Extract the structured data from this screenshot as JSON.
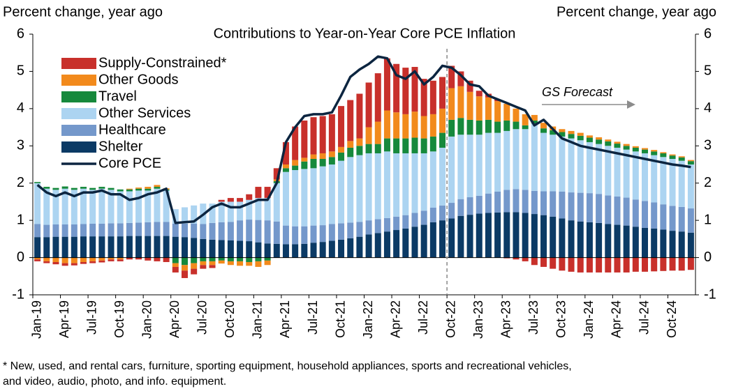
{
  "chart_data": {
    "type": "stacked-bar",
    "title": "Contributions to Year-on-Year Core PCE Inflation",
    "ylabel": "Percent change, year ago",
    "y2label": "Percent change, year ago",
    "annotation": "GS Forecast",
    "footnote": [
      "* New, used, and rental cars, furniture, sporting equipment, household appliances, sports and recreational vehicles,",
      "and video, audio, photo, and info. equipment."
    ],
    "categories": [
      "Jan-19",
      null,
      null,
      "Apr-19",
      null,
      null,
      "Jul-19",
      null,
      null,
      "Oct-19",
      null,
      null,
      "Jan-20",
      null,
      null,
      "Apr-20",
      null,
      null,
      "Jul-20",
      null,
      null,
      "Oct-20",
      null,
      null,
      "Jan-21",
      null,
      null,
      "Apr-21",
      null,
      null,
      "Jul-21",
      null,
      null,
      "Oct-21",
      null,
      null,
      "Jan-22",
      null,
      null,
      "Apr-22",
      null,
      null,
      "Jul-22",
      null,
      null,
      "Oct-22",
      null,
      null,
      "Jan-23",
      null,
      null,
      "Apr-23",
      null,
      null,
      "Jul-23",
      null,
      null,
      "Oct-23",
      null,
      null,
      "Jan-24",
      null,
      null,
      "Apr-24",
      null,
      null,
      "Jul-24",
      null,
      null,
      "Oct-24",
      null,
      null
    ],
    "series": [
      {
        "name": "Shelter",
        "color": "#0b3a65",
        "values": [
          0.55,
          0.55,
          0.56,
          0.56,
          0.56,
          0.57,
          0.57,
          0.57,
          0.57,
          0.57,
          0.58,
          0.58,
          0.58,
          0.58,
          0.58,
          0.56,
          0.55,
          0.53,
          0.5,
          0.48,
          0.47,
          0.46,
          0.45,
          0.44,
          0.41,
          0.38,
          0.37,
          0.36,
          0.36,
          0.37,
          0.4,
          0.42,
          0.45,
          0.48,
          0.52,
          0.56,
          0.62,
          0.66,
          0.7,
          0.74,
          0.78,
          0.83,
          0.88,
          0.95,
          1.0,
          1.05,
          1.12,
          1.15,
          1.18,
          1.2,
          1.21,
          1.22,
          1.22,
          1.2,
          1.17,
          1.14,
          1.1,
          1.05,
          1.0,
          0.97,
          0.95,
          0.93,
          0.9,
          0.88,
          0.86,
          0.83,
          0.8,
          0.78,
          0.75,
          0.72,
          0.7,
          0.67
        ]
      },
      {
        "name": "Healthcare",
        "color": "#7498cb",
        "values": [
          0.35,
          0.33,
          0.33,
          0.33,
          0.33,
          0.33,
          0.34,
          0.34,
          0.35,
          0.35,
          0.35,
          0.36,
          0.37,
          0.38,
          0.38,
          0.35,
          0.36,
          0.38,
          0.4,
          0.45,
          0.48,
          0.5,
          0.55,
          0.58,
          0.6,
          0.62,
          0.6,
          0.5,
          0.48,
          0.47,
          0.46,
          0.45,
          0.45,
          0.44,
          0.42,
          0.4,
          0.38,
          0.37,
          0.36,
          0.36,
          0.36,
          0.37,
          0.38,
          0.39,
          0.4,
          0.42,
          0.45,
          0.47,
          0.48,
          0.52,
          0.56,
          0.6,
          0.62,
          0.62,
          0.62,
          0.64,
          0.68,
          0.72,
          0.75,
          0.77,
          0.78,
          0.78,
          0.77,
          0.76,
          0.75,
          0.73,
          0.72,
          0.7,
          0.68,
          0.67,
          0.66,
          0.65
        ]
      },
      {
        "name": "Other Services",
        "color": "#acd4f1",
        "values": [
          1.1,
          0.97,
          0.93,
          0.96,
          0.93,
          0.95,
          0.91,
          0.94,
          0.9,
          0.86,
          0.85,
          0.86,
          0.85,
          0.89,
          0.84,
          0.39,
          0.44,
          0.49,
          0.55,
          0.52,
          0.55,
          0.54,
          0.5,
          0.53,
          0.59,
          0.6,
          1.03,
          1.44,
          1.51,
          1.54,
          1.54,
          1.58,
          1.6,
          1.68,
          1.76,
          1.79,
          1.8,
          1.77,
          1.79,
          1.7,
          1.66,
          1.6,
          1.54,
          1.51,
          1.55,
          1.78,
          1.73,
          1.68,
          1.64,
          1.63,
          1.58,
          1.58,
          1.61,
          1.63,
          1.81,
          1.57,
          1.52,
          1.48,
          1.45,
          1.41,
          1.37,
          1.34,
          1.33,
          1.31,
          1.29,
          1.29,
          1.28,
          1.27,
          1.27,
          1.26,
          1.24,
          1.18
        ]
      },
      {
        "name": "Travel",
        "color": "#16893c",
        "values": [
          0.03,
          0.05,
          0.05,
          0.06,
          0.05,
          0.05,
          0.05,
          0.05,
          0.05,
          0.05,
          0.05,
          0.05,
          0.05,
          0.05,
          0.03,
          -0.15,
          -0.2,
          -0.15,
          -0.1,
          -0.1,
          -0.08,
          -0.1,
          -0.1,
          -0.12,
          -0.1,
          -0.08,
          0.05,
          0.1,
          0.12,
          0.2,
          0.25,
          0.2,
          0.2,
          0.22,
          0.25,
          0.25,
          0.25,
          0.25,
          0.35,
          0.4,
          0.4,
          0.42,
          0.4,
          0.4,
          0.4,
          0.45,
          0.45,
          0.4,
          0.38,
          0.35,
          0.3,
          0.28,
          0.2,
          0.1,
          0.08,
          0.12,
          0.12,
          0.12,
          0.12,
          0.12,
          0.12,
          0.12,
          0.12,
          0.11,
          0.1,
          0.1,
          0.1,
          0.1,
          0.1,
          0.09,
          0.09,
          0.09
        ]
      },
      {
        "name": "Other Goods",
        "color": "#f28a1c",
        "values": [
          -0.05,
          -0.1,
          -0.12,
          -0.15,
          -0.15,
          -0.12,
          -0.1,
          -0.08,
          -0.05,
          -0.05,
          0.02,
          0.03,
          0.05,
          0.05,
          0.03,
          -0.1,
          -0.15,
          -0.15,
          -0.1,
          -0.1,
          -0.08,
          -0.1,
          -0.12,
          -0.1,
          -0.15,
          -0.12,
          0.05,
          0.1,
          0.15,
          0.1,
          0.12,
          0.15,
          0.15,
          0.15,
          0.18,
          0.2,
          0.45,
          0.6,
          0.75,
          0.7,
          0.65,
          0.7,
          0.6,
          0.6,
          0.65,
          0.85,
          0.85,
          0.75,
          0.65,
          0.6,
          0.55,
          0.45,
          0.35,
          0.3,
          0.15,
          0.15,
          0.1,
          0.08,
          0.08,
          0.08,
          0.06,
          0.06,
          0.05,
          0.05,
          0.05,
          0.04,
          0.04,
          0.04,
          0.03,
          0.03,
          0.03,
          0.03
        ]
      },
      {
        "name": "Supply-Constrained*",
        "color": "#c8302b",
        "values": [
          -0.05,
          -0.05,
          -0.06,
          -0.07,
          -0.06,
          -0.05,
          -0.05,
          -0.05,
          -0.05,
          -0.05,
          -0.05,
          -0.05,
          -0.08,
          -0.1,
          -0.12,
          -0.15,
          -0.2,
          -0.15,
          -0.1,
          -0.08,
          0.05,
          0.1,
          0.1,
          0.15,
          0.3,
          0.3,
          0.3,
          0.6,
          0.9,
          1.0,
          1.0,
          1.0,
          1.0,
          1.1,
          1.1,
          1.2,
          1.2,
          1.3,
          1.4,
          1.3,
          1.25,
          1.2,
          1.0,
          0.9,
          0.85,
          0.6,
          0.4,
          0.3,
          0.15,
          0.1,
          0.05,
          -0.02,
          -0.05,
          -0.1,
          -0.2,
          -0.25,
          -0.3,
          -0.35,
          -0.38,
          -0.4,
          -0.4,
          -0.4,
          -0.4,
          -0.4,
          -0.4,
          -0.38,
          -0.38,
          -0.37,
          -0.36,
          -0.35,
          -0.35,
          -0.33
        ]
      }
    ],
    "line": {
      "name": "Core PCE",
      "color": "#0c2540",
      "values": [
        1.95,
        1.75,
        1.65,
        1.75,
        1.65,
        1.75,
        1.75,
        1.8,
        1.7,
        1.7,
        1.55,
        1.6,
        1.7,
        1.75,
        1.85,
        0.93,
        0.95,
        0.97,
        1.15,
        1.35,
        1.45,
        1.35,
        1.35,
        1.45,
        1.55,
        1.55,
        2.0,
        3.1,
        3.5,
        3.8,
        3.85,
        3.85,
        3.9,
        4.35,
        4.85,
        5.05,
        5.2,
        5.4,
        5.35,
        4.9,
        4.8,
        5.0,
        4.65,
        4.85,
        5.15,
        5.1,
        4.9,
        4.65,
        4.6,
        4.35,
        4.25,
        4.15,
        4.05,
        3.95,
        3.55,
        3.7,
        3.45,
        3.2,
        3.1,
        3.0,
        2.95,
        2.9,
        2.85,
        2.8,
        2.75,
        2.7,
        2.65,
        2.6,
        2.55,
        2.5,
        2.47,
        2.43
      ]
    },
    "ylim": [
      -1,
      6
    ],
    "yticks": [
      -1,
      0,
      1,
      2,
      3,
      4,
      5,
      6
    ],
    "y2lim": [
      -1,
      6
    ],
    "y2ticks": [
      -1,
      0,
      1,
      2,
      3,
      4,
      5,
      6
    ],
    "grid": false
  }
}
